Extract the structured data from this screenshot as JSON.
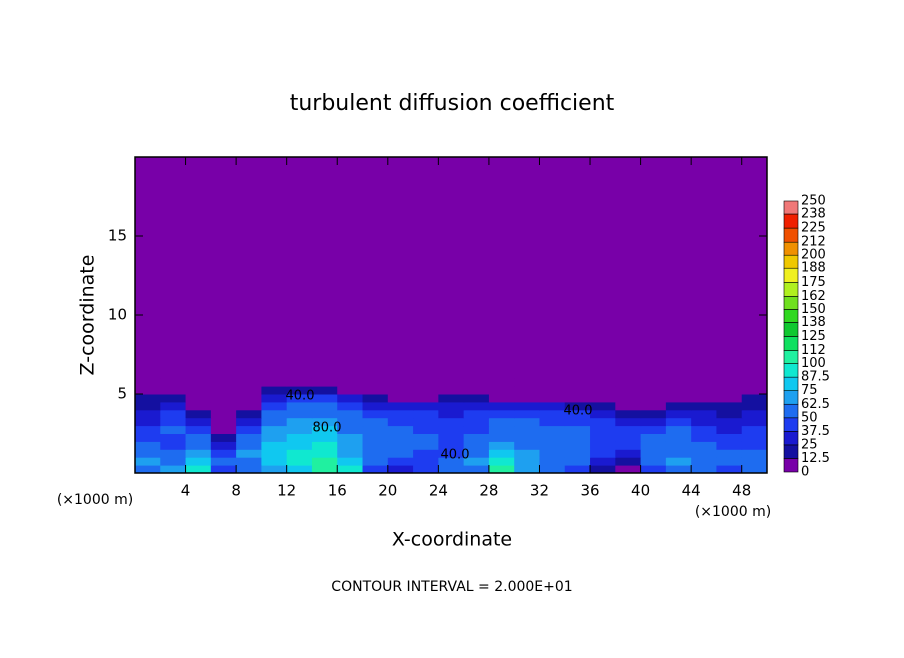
{
  "chart_data": {
    "type": "contour",
    "title": "turbulent diffusion coefficient",
    "x_label": "X-coordinate",
    "y_label": "Z-coordinate",
    "x_unit": "(×1000 m)",
    "y_unit": "(×1000 m)",
    "footer": "CONTOUR INTERVAL = 2.000E+01",
    "contour_labels": [
      "40.0",
      "80.0",
      "40.0",
      "40.0"
    ],
    "xlim": [
      0,
      50
    ],
    "ylim": [
      0,
      20
    ],
    "xticks": [
      4,
      8,
      12,
      16,
      20,
      24,
      28,
      32,
      36,
      40,
      44,
      48
    ],
    "yticks": [
      5,
      10,
      15
    ],
    "field": {
      "x": [
        1,
        3,
        5,
        7,
        9,
        11,
        13,
        15,
        17,
        19,
        21,
        23,
        25,
        27,
        29,
        31,
        33,
        35,
        37,
        39,
        41,
        43,
        45,
        47,
        49
      ],
      "z": [
        0.25,
        0.75,
        1.25,
        1.75,
        2.25,
        2.75,
        3.25,
        3.75,
        4.25,
        4.75,
        5.25,
        5.75
      ],
      "values": [
        [
          60,
          70,
          90,
          40,
          50,
          70,
          80,
          100,
          90,
          40,
          30,
          40,
          50,
          60,
          100,
          70,
          60,
          40,
          20,
          10,
          40,
          60,
          50,
          40,
          50
        ],
        [
          70,
          60,
          80,
          50,
          60,
          80,
          90,
          100,
          80,
          50,
          40,
          40,
          50,
          70,
          90,
          70,
          60,
          50,
          30,
          20,
          50,
          70,
          60,
          50,
          60
        ],
        [
          60,
          50,
          70,
          40,
          70,
          80,
          90,
          90,
          70,
          50,
          50,
          40,
          40,
          60,
          80,
          70,
          60,
          50,
          40,
          30,
          50,
          60,
          60,
          50,
          50
        ],
        [
          50,
          40,
          60,
          30,
          60,
          80,
          80,
          90,
          70,
          60,
          50,
          50,
          40,
          50,
          70,
          60,
          60,
          50,
          40,
          40,
          60,
          50,
          50,
          40,
          40
        ],
        [
          40,
          40,
          50,
          20,
          50,
          70,
          80,
          80,
          70,
          60,
          50,
          50,
          40,
          50,
          60,
          60,
          50,
          50,
          40,
          40,
          50,
          50,
          40,
          40,
          40
        ],
        [
          40,
          50,
          40,
          10,
          40,
          70,
          70,
          80,
          60,
          60,
          50,
          40,
          40,
          40,
          60,
          50,
          50,
          50,
          40,
          40,
          40,
          50,
          40,
          30,
          40
        ],
        [
          30,
          40,
          30,
          0,
          30,
          60,
          70,
          70,
          60,
          50,
          40,
          40,
          40,
          40,
          50,
          50,
          40,
          40,
          40,
          30,
          30,
          40,
          30,
          30,
          30
        ],
        [
          30,
          40,
          20,
          0,
          20,
          50,
          60,
          60,
          50,
          40,
          40,
          40,
          30,
          40,
          40,
          40,
          40,
          40,
          30,
          20,
          20,
          30,
          30,
          20,
          30
        ],
        [
          20,
          30,
          0,
          0,
          10,
          40,
          50,
          50,
          40,
          30,
          30,
          30,
          30,
          30,
          30,
          30,
          30,
          20,
          20,
          10,
          10,
          20,
          20,
          20,
          20
        ],
        [
          20,
          20,
          0,
          0,
          0,
          30,
          40,
          40,
          30,
          20,
          10,
          10,
          20,
          20,
          10,
          10,
          10,
          0,
          0,
          0,
          0,
          10,
          10,
          10,
          20
        ],
        [
          10,
          10,
          0,
          0,
          0,
          20,
          20,
          20,
          10,
          0,
          0,
          0,
          0,
          0,
          0,
          0,
          0,
          0,
          0,
          0,
          0,
          0,
          0,
          10,
          10
        ],
        [
          0,
          0,
          0,
          0,
          0,
          0,
          0,
          0,
          0,
          0,
          0,
          0,
          0,
          0,
          0,
          0,
          0,
          0,
          0,
          0,
          0,
          0,
          0,
          0,
          10
        ]
      ]
    },
    "colorbar": {
      "levels": [
        0,
        12.5,
        25,
        37.5,
        50,
        62.5,
        75,
        87.5,
        100,
        112,
        125,
        138,
        150,
        162,
        175,
        188,
        200,
        212,
        225,
        238,
        250
      ],
      "colors": [
        "#7800a8",
        "#1410a0",
        "#1a1ad0",
        "#1e3cf0",
        "#1e6cf0",
        "#1ea0f0",
        "#10c8f0",
        "#10e8d0",
        "#20f0a0",
        "#10e060",
        "#10c830",
        "#30d820",
        "#70e020",
        "#b0f020",
        "#f0f020",
        "#f0c800",
        "#f09000",
        "#f05000",
        "#f02000",
        "#f07878"
      ]
    }
  }
}
